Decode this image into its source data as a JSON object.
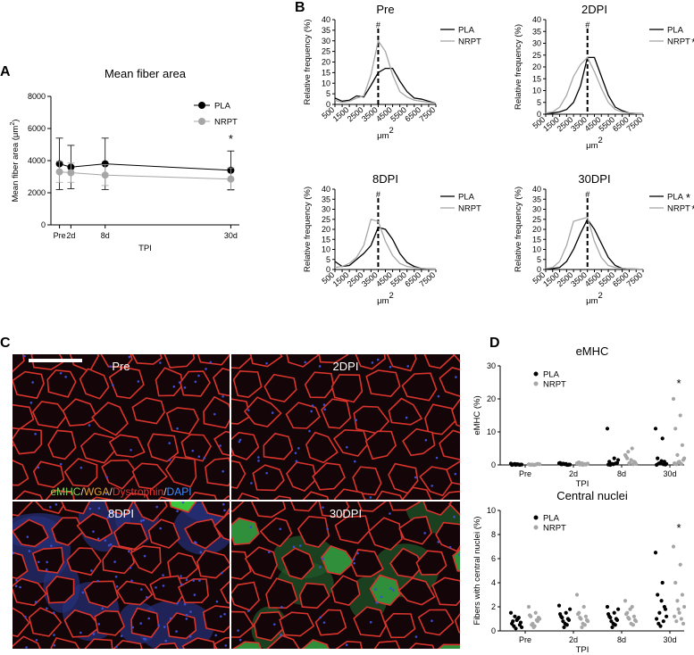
{
  "panels": {
    "a": "A",
    "b": "B",
    "c": "C",
    "d": "D"
  },
  "colors": {
    "pla": "#000000",
    "nrpt": "#a6a6a6",
    "membrane": "#d8342c",
    "nuclei": "#3a4fd6",
    "emhc": "#3ec53e"
  },
  "sig_star": "*",
  "hash": "#",
  "chart_data": [
    {
      "id": "mean-fiber-area",
      "type": "line",
      "title": "Mean fiber area",
      "ylabel": "Mean fiber area (μm",
      "ylabel_sup": "2",
      "ylabel_end": ")",
      "xlabel": "TPI",
      "categories": [
        "Pre",
        "2d",
        "8d",
        "30d"
      ],
      "x_positions": [
        0,
        2,
        8,
        30
      ],
      "ylim": [
        0,
        8000
      ],
      "yticks": [
        0,
        2000,
        4000,
        6000,
        8000
      ],
      "legend": "top-right",
      "series": [
        {
          "name": "PLA",
          "values": [
            3800,
            3600,
            3800,
            3400
          ],
          "sd": [
            1600,
            1350,
            1600,
            1200
          ]
        },
        {
          "name": "NRPT",
          "values": [
            3300,
            3250,
            3100,
            2850
          ],
          "sd": [
            650,
            600,
            650,
            700
          ]
        }
      ],
      "annotations": [
        {
          "x": 30,
          "text": "*"
        }
      ]
    },
    {
      "id": "hist-pre",
      "type": "line",
      "title": "Pre",
      "ylabel": "Relative frequency (%)",
      "xlabel": "μm",
      "xlabel_sup": "2",
      "x": [
        500,
        1000,
        1500,
        2000,
        2500,
        3000,
        3500,
        4000,
        4500,
        5000,
        5500,
        6000,
        6500,
        7000,
        7500
      ],
      "xticks": [
        500,
        1500,
        2500,
        3500,
        4500,
        5500,
        6500,
        7500
      ],
      "ylim": [
        0,
        40
      ],
      "yticks": [
        0,
        5,
        10,
        15,
        20,
        25,
        30,
        35,
        40
      ],
      "legend": "top-right",
      "series": [
        {
          "name": "PLA",
          "values": [
            3,
            1.5,
            2,
            4,
            3.5,
            9,
            15,
            17,
            17,
            11,
            6,
            3,
            2.5,
            1.5,
            0.5
          ]
        },
        {
          "name": "NRPT",
          "values": [
            2,
            1,
            1.5,
            3,
            4,
            14,
            30,
            25,
            14,
            6,
            3.5,
            2,
            1.5,
            1,
            0.5
          ]
        }
      ],
      "marker_x": 3500,
      "annotations": [
        {
          "text": "#"
        }
      ]
    },
    {
      "id": "hist-2dpi",
      "type": "line",
      "title": "2DPI",
      "ylabel": "Relative frequency (%)",
      "xlabel": "μm",
      "xlabel_sup": "2",
      "x": [
        500,
        1000,
        1500,
        2000,
        2500,
        3000,
        3500,
        4000,
        4500,
        5000,
        5500,
        6000,
        6500,
        7000,
        7500
      ],
      "xticks": [
        500,
        1500,
        2500,
        3500,
        4500,
        5500,
        6500,
        7500
      ],
      "ylim": [
        0,
        40
      ],
      "yticks": [
        0,
        5,
        10,
        15,
        20,
        25,
        30,
        35,
        40
      ],
      "legend": "top-right",
      "series": [
        {
          "name": "PLA",
          "values": [
            0.5,
            0.5,
            1,
            2,
            5,
            12,
            24,
            24,
            16,
            8,
            3,
            1.5,
            0.5,
            0.3,
            0.2
          ]
        },
        {
          "name": "NRPT",
          "values": [
            0.5,
            1,
            3,
            8,
            16,
            21,
            24,
            18,
            11,
            5,
            2,
            1,
            0.5,
            0.3,
            0.2
          ]
        }
      ],
      "marker_x": 3500,
      "annotations": [
        {
          "text": "#"
        },
        {
          "series": "NRPT",
          "text": "*"
        }
      ]
    },
    {
      "id": "hist-8dpi",
      "type": "line",
      "title": "8DPI",
      "ylabel": "Relative frequency (%)",
      "xlabel": "μm",
      "xlabel_sup": "2",
      "x": [
        500,
        1000,
        1500,
        2000,
        2500,
        3000,
        3500,
        4000,
        4500,
        5000,
        5500,
        6000,
        6500,
        7000,
        7500
      ],
      "xticks": [
        500,
        1500,
        2500,
        3500,
        4500,
        5500,
        6500,
        7500
      ],
      "ylim": [
        0,
        40
      ],
      "yticks": [
        0,
        5,
        10,
        15,
        20,
        25,
        30,
        35,
        40
      ],
      "legend": "top-right",
      "series": [
        {
          "name": "PLA",
          "values": [
            4,
            1.5,
            2,
            5,
            8,
            12,
            21,
            20,
            15,
            8,
            3.5,
            1.5,
            0.5,
            0.3,
            0.2
          ]
        },
        {
          "name": "NRPT",
          "values": [
            1,
            1.5,
            3,
            6,
            12,
            25,
            24,
            14,
            7,
            3,
            1.5,
            1,
            0.5,
            0.3,
            0.2
          ]
        }
      ],
      "marker_x": 3500,
      "annotations": [
        {
          "text": "#"
        }
      ]
    },
    {
      "id": "hist-30dpi",
      "type": "line",
      "title": "30DPI",
      "ylabel": "Relative frequency (%)",
      "xlabel": "μm",
      "xlabel_sup": "2",
      "x": [
        500,
        1000,
        1500,
        2000,
        2500,
        3000,
        3500,
        4000,
        4500,
        5000,
        5500,
        6000,
        6500,
        7000,
        7500
      ],
      "xticks": [
        500,
        1500,
        2500,
        3500,
        4500,
        5500,
        6500,
        7500
      ],
      "ylim": [
        0,
        40
      ],
      "yticks": [
        0,
        5,
        10,
        15,
        20,
        25,
        30,
        35,
        40
      ],
      "legend": "top-right",
      "series": [
        {
          "name": "PLA",
          "values": [
            0.5,
            0.5,
            1,
            4,
            10,
            18,
            25,
            20,
            13,
            6,
            2,
            0.5,
            0.3,
            0.2,
            0.1
          ]
        },
        {
          "name": "NRPT",
          "values": [
            0.5,
            1,
            4,
            12,
            24,
            25,
            26,
            14,
            6,
            2,
            1,
            0.5,
            0.3,
            0.2,
            0.1
          ]
        }
      ],
      "marker_x": 3500,
      "annotations": [
        {
          "text": "#"
        },
        {
          "series": "PLA",
          "text": "*"
        },
        {
          "series": "NRPT",
          "text": "*"
        }
      ]
    },
    {
      "id": "emhc",
      "type": "scatter",
      "title": "eMHC",
      "ylabel": "eMHC (%)",
      "xlabel": "TPI",
      "categories": [
        "Pre",
        "2d",
        "8d",
        "30d"
      ],
      "ylim": [
        0,
        30
      ],
      "yticks": [
        0,
        10,
        20,
        30
      ],
      "legend": "top-left",
      "series": [
        {
          "name": "PLA",
          "points": [
            [
              0.4,
              0.2,
              0.1,
              0,
              0.3,
              0.1,
              0.2,
              0,
              0.1,
              0.2,
              0.1,
              0
            ],
            [
              0.5,
              0.3,
              0.2,
              0,
              0.4,
              0.1,
              0.2,
              0.6,
              0,
              0.2,
              0.1,
              0.3
            ],
            [
              11,
              2,
              1,
              0.5,
              0.3,
              1.5,
              0.2,
              0.1,
              0.4,
              0,
              0.6,
              0.3
            ],
            [
              11,
              8,
              2,
              1,
              0.5,
              0.3,
              1.2,
              0,
              0.2,
              0.4,
              0.1,
              0.6
            ]
          ]
        },
        {
          "name": "NRPT",
          "points": [
            [
              0.2,
              0.1,
              0,
              0.3,
              0.1,
              0.2,
              0,
              0.1,
              0.2,
              0.1,
              0.3,
              0
            ],
            [
              0.5,
              0.3,
              0.8,
              0.1,
              0.2,
              0.4,
              0,
              0.6,
              0.2,
              0.1,
              0.3,
              0.5
            ],
            [
              3,
              5,
              2,
              1,
              0.5,
              0.3,
              1.5,
              2.5,
              0.2,
              4,
              0.8,
              0.6
            ],
            [
              20,
              15,
              11,
              6,
              3,
              2,
              1,
              0.5,
              0.3,
              0.2,
              1.5,
              0.8
            ]
          ]
        }
      ],
      "annotations": [
        {
          "category": "30d",
          "text": "*"
        }
      ]
    },
    {
      "id": "central-nuclei",
      "type": "scatter",
      "title": "Central nuclei",
      "ylabel": "Fibers with central nuclei (%)",
      "xlabel": "TPI",
      "categories": [
        "Pre",
        "2d",
        "8d",
        "30d"
      ],
      "ylim": [
        0,
        10
      ],
      "yticks": [
        0,
        2,
        4,
        6,
        8,
        10
      ],
      "legend": "top-left",
      "series": [
        {
          "name": "PLA",
          "points": [
            [
              1.5,
              1,
              0.8,
              0.5,
              1.2,
              0.3,
              0.9,
              0.6,
              1.1,
              0.4,
              0.7,
              0.2
            ],
            [
              2.1,
              1.5,
              1.2,
              1,
              0.8,
              1.8,
              0.6,
              1.4,
              0.5,
              1.1,
              0.9,
              0.3
            ],
            [
              2,
              1.5,
              1.2,
              1,
              0.8,
              1.8,
              0.6,
              1.4,
              0.5,
              1.1,
              0.9,
              0.3
            ],
            [
              6.5,
              4,
              3,
              2,
              1.5,
              1.2,
              2.5,
              1,
              0.8,
              0.6,
              1.8,
              0.4
            ]
          ]
        },
        {
          "name": "NRPT",
          "points": [
            [
              2,
              1.5,
              1.2,
              0.8,
              0.6,
              1,
              0.4,
              1.3,
              0.9,
              0.5,
              1.1,
              0.3
            ],
            [
              3,
              2,
              1.5,
              1.2,
              1,
              0.8,
              0.6,
              1.4,
              0.5,
              1.1,
              0.9,
              0.3
            ],
            [
              2.5,
              2,
              1.5,
              1.2,
              1,
              0.8,
              0.6,
              1.4,
              0.5,
              1.1,
              0.9,
              1.8
            ],
            [
              7,
              5.5,
              4,
              3,
              2.5,
              2,
              1.5,
              1.2,
              1,
              0.8,
              0.6,
              1.8
            ]
          ]
        }
      ],
      "annotations": [
        {
          "category": "30d",
          "text": "*"
        }
      ]
    }
  ],
  "micrographs": {
    "tiles": [
      {
        "label": "Pre",
        "variant": "pre"
      },
      {
        "label": "2DPI",
        "variant": "2dpi"
      },
      {
        "label": "8DPI",
        "variant": "8dpi"
      },
      {
        "label": "30DPI",
        "variant": "30dpi"
      }
    ],
    "stain_legend": [
      {
        "text": "eMHC",
        "color": "#7ed957"
      },
      {
        "text": "/",
        "color": "#d9d9d9"
      },
      {
        "text": "WGA",
        "color": "#e0a33a"
      },
      {
        "text": "/",
        "color": "#d9d9d9"
      },
      {
        "text": "Dystrophin",
        "color": "#e0332c"
      },
      {
        "text": "/",
        "color": "#d9d9d9"
      },
      {
        "text": "DAPI",
        "color": "#3d8cff"
      }
    ]
  }
}
